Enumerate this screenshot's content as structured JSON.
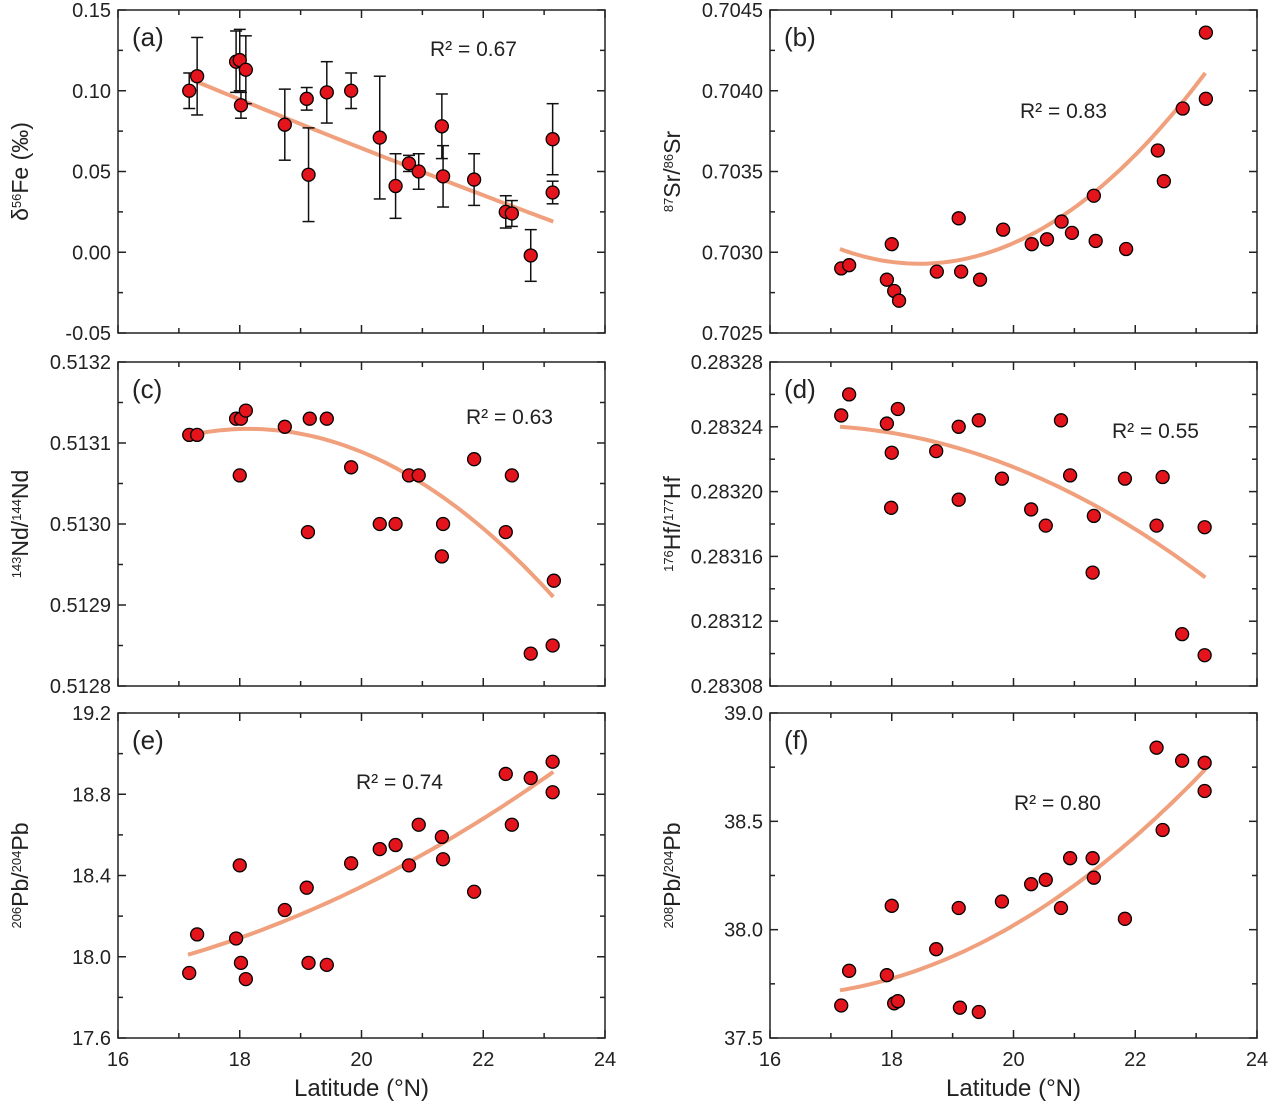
{
  "chart_data": [
    {
      "panel": "(a)",
      "type": "scatter",
      "r2_text": "R² = 0.67",
      "ylabel": [
        {
          "t": "δ"
        },
        {
          "t": "56",
          "sup": true
        },
        {
          "t": "Fe (‰)"
        }
      ],
      "xlabel": "",
      "xlim": [
        16,
        24
      ],
      "ylim": [
        -0.05,
        0.15
      ],
      "yticks": [
        "-0.05",
        "0.00",
        "0.05",
        "0.10",
        "0.15"
      ],
      "yminor": true,
      "x": [
        17.17,
        17.3,
        17.94,
        18.0,
        18.02,
        18.1,
        18.74,
        19.1,
        19.13,
        19.43,
        19.83,
        20.3,
        20.56,
        20.78,
        20.94,
        21.32,
        21.34,
        21.85,
        22.37,
        22.47,
        22.78,
        23.14,
        23.14
      ],
      "y": [
        0.1,
        0.109,
        0.118,
        0.119,
        0.091,
        0.113,
        0.079,
        0.095,
        0.048,
        0.099,
        0.1,
        0.071,
        0.041,
        0.055,
        0.05,
        0.078,
        0.047,
        0.045,
        0.025,
        0.024,
        -0.002,
        0.07,
        0.037
      ],
      "yerr": [
        0.011,
        0.024,
        0.019,
        0.019,
        0.008,
        0.021,
        0.022,
        0.007,
        0.029,
        0.019,
        0.011,
        0.038,
        0.02,
        0.005,
        0.011,
        0.02,
        0.019,
        0.016,
        0.01,
        0.008,
        0.016,
        0.022,
        0.007
      ],
      "fit": {
        "x": [
          17.2,
          20.3,
          23.15
        ],
        "y": [
          0.107,
          0.06,
          0.019
        ]
      }
    },
    {
      "panel": "(b)",
      "type": "scatter",
      "r2_text": "R² = 0.83",
      "ylabel": [
        {
          "t": "87",
          "sup": true
        },
        {
          "t": "Sr/"
        },
        {
          "t": "86",
          "sup": true
        },
        {
          "t": "Sr"
        }
      ],
      "xlabel": "",
      "xlim": [
        16,
        24
      ],
      "ylim": [
        0.7025,
        0.7045
      ],
      "yticks": [
        "0.7025",
        "0.7030",
        "0.7035",
        "0.7040",
        "0.7045"
      ],
      "x": [
        17.17,
        17.3,
        17.92,
        18.0,
        18.04,
        18.12,
        18.74,
        19.1,
        19.14,
        19.45,
        19.83,
        20.3,
        20.55,
        20.79,
        20.96,
        21.32,
        21.35,
        21.85,
        22.37,
        22.47,
        22.78,
        23.16,
        23.16
      ],
      "y": [
        0.7029,
        0.70292,
        0.70283,
        0.70305,
        0.70276,
        0.7027,
        0.70288,
        0.70321,
        0.70288,
        0.70283,
        0.70314,
        0.70305,
        0.70308,
        0.70319,
        0.70312,
        0.70335,
        0.70307,
        0.70302,
        0.70363,
        0.70344,
        0.70389,
        0.70436,
        0.70395
      ],
      "fit": {
        "x": [
          17.15,
          18.6,
          23.15
        ],
        "y": [
          0.70302,
          0.70293,
          0.70411
        ]
      }
    },
    {
      "panel": "(c)",
      "type": "scatter",
      "r2_text": "R² = 0.63",
      "ylabel": [
        {
          "t": "143",
          "sup": true
        },
        {
          "t": "Nd/"
        },
        {
          "t": "144",
          "sup": true
        },
        {
          "t": "Nd"
        }
      ],
      "xlabel": "",
      "xlim": [
        16,
        24
      ],
      "ylim": [
        0.5128,
        0.5132
      ],
      "yticks": [
        "0.5128",
        "0.5129",
        "0.5130",
        "0.5131",
        "0.5132"
      ],
      "x": [
        17.17,
        17.3,
        17.94,
        18.0,
        18.02,
        18.1,
        18.74,
        19.12,
        19.15,
        19.43,
        19.83,
        20.3,
        20.56,
        20.78,
        20.94,
        21.34,
        21.32,
        21.85,
        22.37,
        22.47,
        22.78,
        23.16,
        23.14
      ],
      "y": [
        0.51311,
        0.51311,
        0.51313,
        0.51306,
        0.51313,
        0.51314,
        0.51312,
        0.51299,
        0.51313,
        0.51313,
        0.51307,
        0.513,
        0.513,
        0.51306,
        0.51306,
        0.513,
        0.51296,
        0.51308,
        0.51299,
        0.51306,
        0.51284,
        0.51293,
        0.51285
      ],
      "fit": {
        "x": [
          17.2,
          20.78,
          23.15
        ],
        "y": [
          0.51311,
          0.51306,
          0.51291
        ]
      }
    },
    {
      "panel": "(d)",
      "type": "scatter",
      "r2_text": "R² = 0.55",
      "ylabel": [
        {
          "t": "176",
          "sup": true
        },
        {
          "t": "Hf/"
        },
        {
          "t": "177",
          "sup": true
        },
        {
          "t": "Hf"
        }
      ],
      "xlabel": "",
      "xlim": [
        16,
        24
      ],
      "ylim": [
        0.28308,
        0.28328
      ],
      "yticks": [
        "0.28308",
        "0.28312",
        "0.28316",
        "0.28320",
        "0.28324",
        "0.28328"
      ],
      "x": [
        17.17,
        17.3,
        17.92,
        18.1,
        18.0,
        17.99,
        18.73,
        19.1,
        19.1,
        19.43,
        19.81,
        20.29,
        20.53,
        20.78,
        20.93,
        21.32,
        21.3,
        21.83,
        22.35,
        22.45,
        22.77,
        23.14,
        23.14
      ],
      "y": [
        0.283247,
        0.28326,
        0.283242,
        0.283251,
        0.283224,
        0.28319,
        0.283225,
        0.28324,
        0.283195,
        0.283244,
        0.283208,
        0.283189,
        0.283179,
        0.283244,
        0.28321,
        0.283185,
        0.28315,
        0.283208,
        0.283179,
        0.283209,
        0.283112,
        0.283178,
        0.283099
      ],
      "fit": {
        "x": [
          17.15,
          19.8,
          23.15
        ],
        "y": [
          0.28324,
          0.283218,
          0.283147
        ]
      }
    },
    {
      "panel": "(e)",
      "type": "scatter",
      "r2_text": "R² = 0.74",
      "ylabel": [
        {
          "t": "206",
          "sup": true
        },
        {
          "t": "Pb/"
        },
        {
          "t": "204",
          "sup": true
        },
        {
          "t": "Pb"
        }
      ],
      "xlabel": "Latitude (°N)",
      "xlim": [
        16,
        24
      ],
      "ylim": [
        17.6,
        19.2
      ],
      "xticks": [
        "16",
        "18",
        "20",
        "22",
        "24"
      ],
      "yticks": [
        "17.6",
        "18.0",
        "18.4",
        "18.8",
        "19.2"
      ],
      "x": [
        17.17,
        17.3,
        17.94,
        18.0,
        18.02,
        18.1,
        18.74,
        19.1,
        19.13,
        19.43,
        19.83,
        20.3,
        20.56,
        20.78,
        20.94,
        21.32,
        21.34,
        21.85,
        22.37,
        22.47,
        22.78,
        23.14,
        23.14
      ],
      "y": [
        17.92,
        18.11,
        18.09,
        18.45,
        17.97,
        17.89,
        18.23,
        18.34,
        17.97,
        17.96,
        18.46,
        18.53,
        18.55,
        18.45,
        18.65,
        18.59,
        18.48,
        18.32,
        18.9,
        18.65,
        18.88,
        18.96,
        18.81
      ],
      "fit": {
        "x": [
          17.15,
          20.3,
          23.15
        ],
        "y": [
          18.01,
          18.39,
          18.91
        ]
      }
    },
    {
      "panel": "(f)",
      "type": "scatter",
      "r2_text": "R² = 0.80",
      "ylabel": [
        {
          "t": "208",
          "sup": true
        },
        {
          "t": "Pb/"
        },
        {
          "t": "204",
          "sup": true
        },
        {
          "t": "Pb"
        }
      ],
      "xlabel": "Latitude (°N)",
      "xlim": [
        16,
        24
      ],
      "ylim": [
        37.5,
        39.0
      ],
      "xticks": [
        "16",
        "18",
        "20",
        "22",
        "24"
      ],
      "yticks": [
        "37.5",
        "38.0",
        "38.5",
        "39.0"
      ],
      "x": [
        17.17,
        17.3,
        17.92,
        18.0,
        18.04,
        18.1,
        18.73,
        19.1,
        19.12,
        19.43,
        19.81,
        20.29,
        20.53,
        20.78,
        20.93,
        21.3,
        21.32,
        21.83,
        22.35,
        22.45,
        22.77,
        23.14,
        23.14
      ],
      "y": [
        37.65,
        37.81,
        37.79,
        38.11,
        37.66,
        37.67,
        37.91,
        38.1,
        37.64,
        37.62,
        38.13,
        38.21,
        38.23,
        38.1,
        38.33,
        38.33,
        38.24,
        38.05,
        38.84,
        38.46,
        38.78,
        38.77,
        38.64
      ],
      "fit": {
        "x": [
          17.15,
          20.0,
          23.15
        ],
        "y": [
          37.72,
          38.02,
          38.74
        ]
      }
    }
  ],
  "colors": {
    "marker": "#e3141b",
    "marker_edge": "#000000",
    "fit": "#f0a07c",
    "axis": "#222222"
  }
}
